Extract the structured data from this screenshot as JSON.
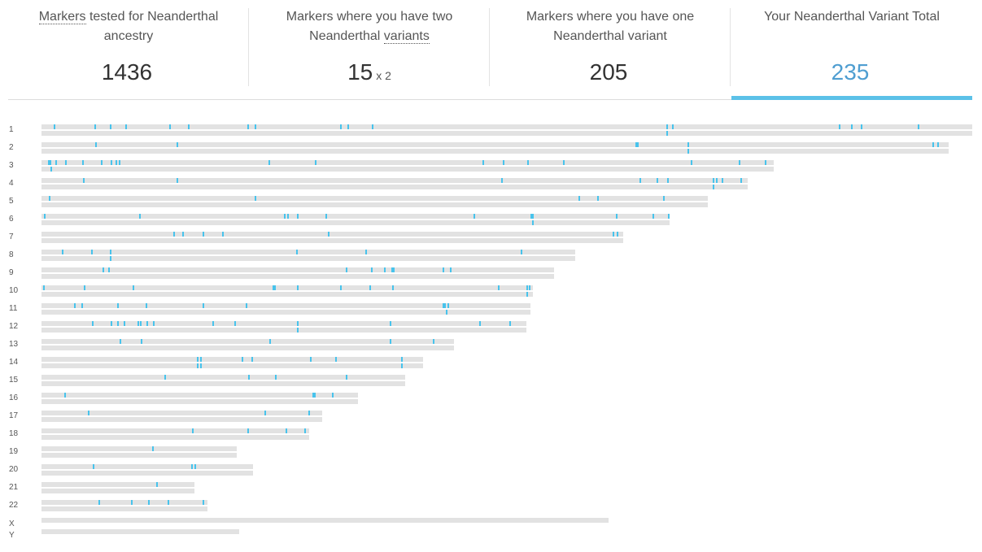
{
  "stats": [
    {
      "label_pre": "",
      "label_dotted": "Markers",
      "label_post": " tested for Neanderthal ancestry",
      "value": "1436",
      "mult": ""
    },
    {
      "label_pre": "Markers where you have two Neanderthal ",
      "label_dotted": "variants",
      "label_post": "",
      "value": "15",
      "mult": "x 2"
    },
    {
      "label_pre": "Markers where you have one Neanderthal variant",
      "label_dotted": "",
      "label_post": "",
      "value": "205",
      "mult": ""
    },
    {
      "label_pre": "Your Neanderthal Variant Total",
      "label_dotted": "",
      "label_post": "",
      "value": "235",
      "mult": ""
    }
  ],
  "active_stat": 3,
  "colors": {
    "marker": "#48c3ec",
    "active_value": "#4f9ed1",
    "active_bar": "#5cc1e8",
    "chromosome": "#e2e2e2"
  },
  "chromosomes": [
    {
      "label": "1",
      "length": 1.0
    },
    {
      "label": "2",
      "length": 0.975
    },
    {
      "label": "3",
      "length": 0.787
    },
    {
      "label": "4",
      "length": 0.759
    },
    {
      "label": "5",
      "length": 0.716
    },
    {
      "label": "6",
      "length": 0.675
    },
    {
      "label": "7",
      "length": 0.625
    },
    {
      "label": "8",
      "length": 0.573
    },
    {
      "label": "9",
      "length": 0.551
    },
    {
      "label": "10",
      "length": 0.528
    },
    {
      "label": "11",
      "length": 0.525
    },
    {
      "label": "12",
      "length": 0.521
    },
    {
      "label": "13",
      "length": 0.443
    },
    {
      "label": "14",
      "length": 0.41
    },
    {
      "label": "15",
      "length": 0.391
    },
    {
      "label": "16",
      "length": 0.34
    },
    {
      "label": "17",
      "length": 0.302
    },
    {
      "label": "18",
      "length": 0.288
    },
    {
      "label": "19",
      "length": 0.21
    },
    {
      "label": "20",
      "length": 0.227
    },
    {
      "label": "21",
      "length": 0.164
    },
    {
      "label": "22",
      "length": 0.178
    },
    {
      "label": "X",
      "length": 0.609
    },
    {
      "label": "Y",
      "length": 0.212
    }
  ]
}
